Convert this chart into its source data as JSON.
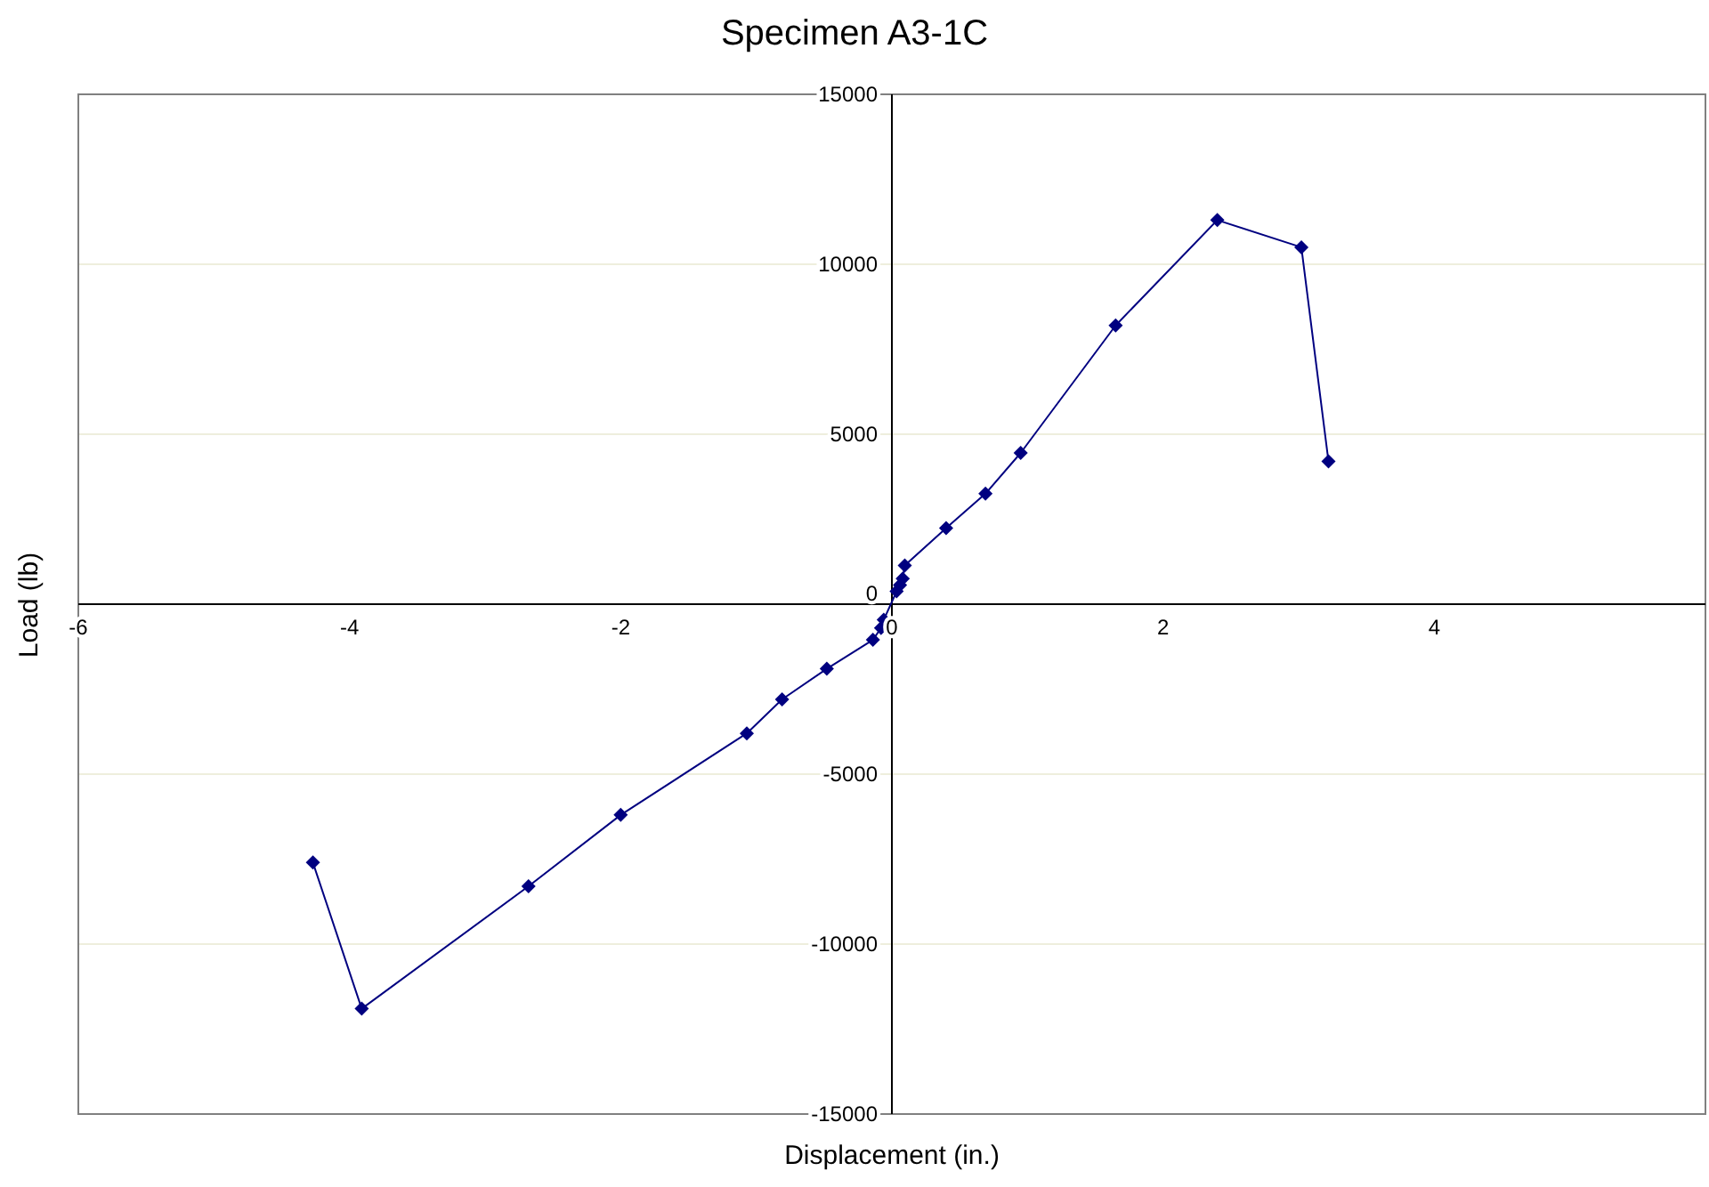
{
  "chart_data": {
    "type": "line",
    "title": "Specimen A3-1C",
    "xlabel": "Displacement (in.)",
    "ylabel": "Load (lb)",
    "xlim": [
      -6,
      6
    ],
    "xticks": [
      -6,
      -4,
      -2,
      0,
      2,
      4
    ],
    "ylim": [
      -15000,
      15000
    ],
    "yticks": [
      -15000,
      -10000,
      -5000,
      0,
      5000,
      10000,
      15000
    ],
    "grid": "y",
    "marker": "diamond",
    "line_style": "solid",
    "series": [
      {
        "color": "#000080",
        "x": [
          -4.27,
          -3.91,
          -2.68,
          -2.0,
          -1.07,
          -0.81,
          -0.48,
          -0.14,
          -0.08,
          -0.06,
          0.035,
          0.06,
          0.08,
          0.095,
          0.4,
          0.69,
          0.95,
          1.65,
          2.4,
          3.02,
          3.22
        ],
        "values": [
          -7600,
          -11900,
          -8300,
          -6200,
          -3800,
          -2800,
          -1900,
          -1050,
          -700,
          -460,
          380,
          560,
          750,
          1140,
          2240,
          3250,
          4450,
          8200,
          11300,
          10500,
          4200
        ]
      }
    ]
  }
}
